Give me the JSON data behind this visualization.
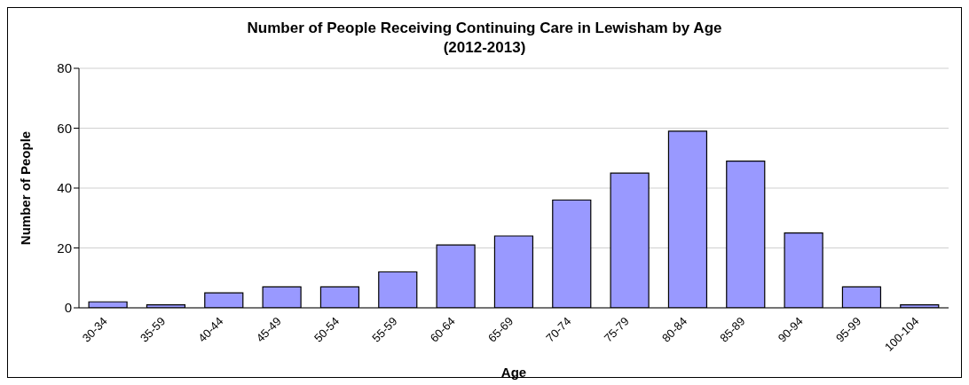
{
  "chart_data": {
    "type": "bar",
    "title": "Number of People Receiving Continuing Care in Lewisham by Age\n(2012-2013)",
    "xlabel": "Age",
    "ylabel": "Number of People",
    "categories": [
      "30-34",
      "35-59",
      "40-44",
      "45-49",
      "50-54",
      "55-59",
      "60-64",
      "65-69",
      "70-74",
      "75-79",
      "80-84",
      "85-89",
      "90-94",
      "95-99",
      "100-104"
    ],
    "values": [
      2,
      1,
      5,
      7,
      7,
      12,
      21,
      24,
      36,
      45,
      59,
      49,
      25,
      7,
      1
    ],
    "color": "#9999ff",
    "ylim": [
      0,
      80
    ],
    "yticks": [
      0,
      20,
      40,
      60,
      80
    ],
    "grid": "y"
  }
}
